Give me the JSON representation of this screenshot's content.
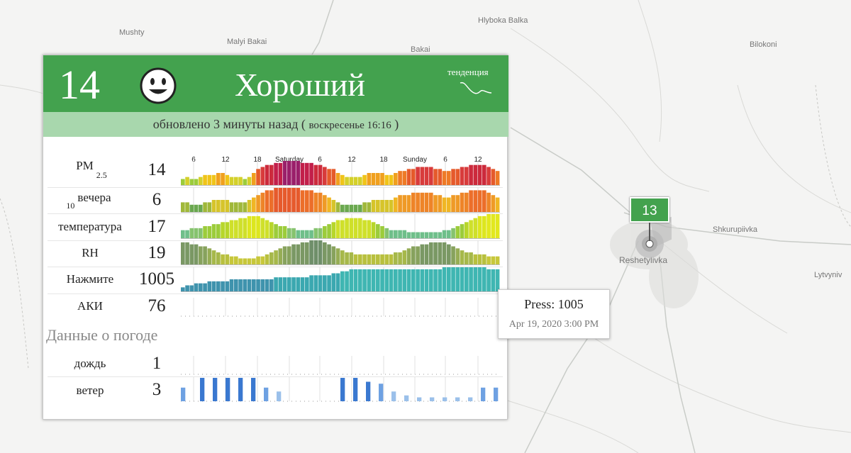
{
  "map": {
    "places": [
      {
        "name": "Mushty"
      },
      {
        "name": "Malyi Bakai"
      },
      {
        "name": "Bakai"
      },
      {
        "name": "Hlyboka Balka"
      },
      {
        "name": "Bilokoni"
      },
      {
        "name": "Shkurupiivka"
      },
      {
        "name": "Reshetylivka"
      },
      {
        "name": "Lytvyniv"
      }
    ],
    "marker_value": "13",
    "marker_color": "#43a24e"
  },
  "card": {
    "aqi": "14",
    "status": "Хороший",
    "status_color": "#43a24e",
    "face_icon": "smiley-face-icon",
    "trend_label": "тенденция",
    "updated": "обновлено 3 минуты назад (",
    "updated_time": "воскресенье 16:16",
    "updated_close": ")",
    "day_labels": [
      "Saturday",
      "Sunday"
    ],
    "hour_ticks": [
      "6",
      "12",
      "18",
      "6",
      "12",
      "18",
      "6",
      "12"
    ],
    "rows": [
      {
        "label": "PM",
        "sub": "2.5",
        "value": "14"
      },
      {
        "label": "вечера",
        "sub": "10",
        "value": "6"
      },
      {
        "label": "температура",
        "value": "17"
      },
      {
        "label": "RH",
        "value": "19"
      },
      {
        "label": "Нажмите",
        "value": "1005"
      },
      {
        "label": "АКИ",
        "value": "76"
      }
    ],
    "weather_title": "Данные о погоде",
    "weather_rows": [
      {
        "label": "дождь",
        "value": "1"
      },
      {
        "label": "ветер",
        "value": "3"
      }
    ]
  },
  "tooltip": {
    "main": "Press: 1005",
    "date": "Apr 19, 2020 3:00 PM"
  },
  "chart_data": {
    "type": "bar",
    "title": "",
    "x_labels": [
      "6",
      "12",
      "18",
      "Saturday",
      "6",
      "12",
      "18",
      "Sunday",
      "6",
      "12"
    ],
    "series": [
      {
        "name": "PM 2.5",
        "values": [
          3,
          4,
          3,
          3,
          4,
          5,
          5,
          5,
          6,
          6,
          5,
          4,
          4,
          4,
          3,
          4,
          6,
          8,
          9,
          10,
          10,
          11,
          11,
          12,
          12,
          12,
          12,
          11,
          11,
          11,
          10,
          10,
          9,
          8,
          8,
          6,
          5,
          4,
          4,
          4,
          4,
          5,
          6,
          6,
          6,
          6,
          5,
          5,
          6,
          7,
          7,
          8,
          8,
          9,
          9,
          9,
          9,
          8,
          8,
          7,
          7,
          8,
          8,
          9,
          9,
          10,
          10,
          10,
          10,
          9,
          8,
          7
        ]
      },
      {
        "name": "PM 10",
        "values": [
          4,
          4,
          3,
          3,
          3,
          4,
          4,
          5,
          5,
          5,
          5,
          4,
          4,
          4,
          4,
          5,
          6,
          7,
          8,
          9,
          9,
          10,
          10,
          10,
          10,
          10,
          10,
          9,
          9,
          9,
          8,
          8,
          7,
          6,
          5,
          4,
          3,
          3,
          3,
          3,
          3,
          4,
          4,
          5,
          5,
          5,
          5,
          5,
          6,
          7,
          7,
          7,
          8,
          8,
          8,
          8,
          8,
          7,
          7,
          6,
          6,
          7,
          7,
          8,
          8,
          9,
          9,
          9,
          9,
          8,
          7,
          6
        ]
      },
      {
        "name": "Temperature",
        "values": [
          4,
          4,
          5,
          5,
          5,
          6,
          6,
          7,
          7,
          8,
          8,
          9,
          9,
          10,
          10,
          11,
          11,
          11,
          10,
          9,
          8,
          7,
          6,
          6,
          5,
          5,
          4,
          4,
          4,
          4,
          5,
          5,
          6,
          7,
          8,
          9,
          9,
          10,
          10,
          10,
          10,
          9,
          9,
          8,
          7,
          6,
          5,
          4,
          4,
          4,
          4,
          3,
          3,
          3,
          3,
          3,
          3,
          3,
          3,
          4,
          4,
          5,
          6,
          7,
          8,
          9,
          10,
          11,
          11,
          12,
          12,
          12
        ]
      },
      {
        "name": "RH",
        "values": [
          11,
          11,
          10,
          10,
          9,
          9,
          8,
          7,
          6,
          5,
          5,
          4,
          4,
          3,
          3,
          3,
          3,
          4,
          4,
          5,
          6,
          7,
          8,
          9,
          9,
          10,
          10,
          11,
          11,
          12,
          12,
          12,
          11,
          10,
          9,
          8,
          7,
          6,
          6,
          5,
          5,
          5,
          5,
          5,
          5,
          5,
          5,
          5,
          6,
          6,
          7,
          8,
          9,
          9,
          10,
          10,
          11,
          11,
          11,
          11,
          10,
          9,
          8,
          7,
          6,
          6,
          5,
          5,
          5,
          4,
          4,
          4
        ]
      },
      {
        "name": "Pressure",
        "values": [
          2,
          3,
          3,
          4,
          4,
          4,
          5,
          5,
          5,
          5,
          5,
          6,
          6,
          6,
          6,
          6,
          6,
          6,
          6,
          6,
          6,
          7,
          7,
          7,
          7,
          7,
          7,
          7,
          7,
          8,
          8,
          8,
          8,
          8,
          9,
          9,
          10,
          10,
          11,
          11,
          11,
          11,
          11,
          11,
          11,
          11,
          11,
          11,
          11,
          11,
          11,
          11,
          11,
          11,
          11,
          11,
          11,
          11,
          11,
          12,
          12,
          12,
          12,
          12,
          12,
          12,
          12,
          12,
          12,
          11,
          11,
          11
        ]
      },
      {
        "name": "ветер",
        "values": [
          7,
          0,
          0,
          12,
          0,
          12,
          0,
          12,
          0,
          12,
          0,
          12,
          0,
          7,
          0,
          5,
          0,
          0,
          0,
          0,
          0,
          0,
          0,
          0,
          0,
          12,
          0,
          12,
          0,
          10,
          0,
          9,
          0,
          5,
          0,
          3,
          0,
          2,
          0,
          2,
          0,
          2,
          0,
          2,
          0,
          2,
          0,
          7,
          0,
          7
        ]
      }
    ]
  }
}
